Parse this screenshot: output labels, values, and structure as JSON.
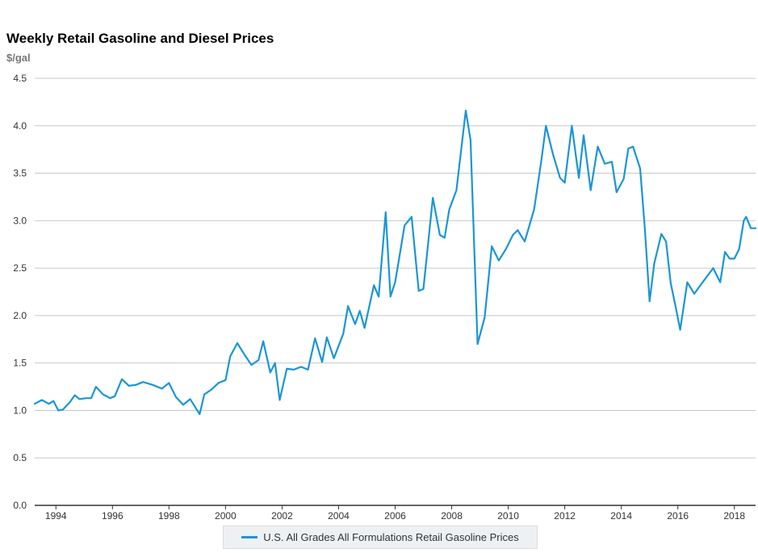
{
  "chart_data": {
    "type": "line",
    "title": "Weekly Retail Gasoline and Diesel Prices",
    "ylabel": "$/gal",
    "xlabel": "",
    "ylim": [
      0,
      4.5
    ],
    "xlim": [
      "1993-04",
      "2018-10"
    ],
    "y_ticks": [
      "0.0",
      "0.5",
      "1.0",
      "1.5",
      "2.0",
      "2.5",
      "3.0",
      "3.5",
      "4.0",
      "4.5"
    ],
    "x_ticks": [
      "1994",
      "1996",
      "1998",
      "2000",
      "2002",
      "2004",
      "2006",
      "2008",
      "2010",
      "2012",
      "2014",
      "2016",
      "2018"
    ],
    "grid": "horizontal",
    "legend_position": "bottom",
    "series": [
      {
        "name": "U.S. All Grades All Formulations Retail Gasoline Prices",
        "color": "#1a96d4",
        "points": [
          [
            "1993-04",
            1.07
          ],
          [
            "1993-07",
            1.11
          ],
          [
            "1993-10",
            1.07
          ],
          [
            "1993-12",
            1.1
          ],
          [
            "1994-02",
            1.0
          ],
          [
            "1994-04",
            1.01
          ],
          [
            "1994-07",
            1.09
          ],
          [
            "1994-09",
            1.16
          ],
          [
            "1994-11",
            1.12
          ],
          [
            "1995-02",
            1.13
          ],
          [
            "1995-04",
            1.13
          ],
          [
            "1995-06",
            1.25
          ],
          [
            "1995-09",
            1.17
          ],
          [
            "1995-12",
            1.13
          ],
          [
            "1996-02",
            1.15
          ],
          [
            "1996-05",
            1.33
          ],
          [
            "1996-08",
            1.26
          ],
          [
            "1996-11",
            1.27
          ],
          [
            "1997-02",
            1.3
          ],
          [
            "1997-06",
            1.27
          ],
          [
            "1997-10",
            1.23
          ],
          [
            "1998-01",
            1.29
          ],
          [
            "1998-04",
            1.14
          ],
          [
            "1998-07",
            1.06
          ],
          [
            "1998-10",
            1.12
          ],
          [
            "1999-01",
            1.0
          ],
          [
            "1999-02",
            0.96
          ],
          [
            "1999-04",
            1.17
          ],
          [
            "1999-07",
            1.22
          ],
          [
            "1999-10",
            1.29
          ],
          [
            "2000-01",
            1.32
          ],
          [
            "2000-03",
            1.57
          ],
          [
            "2000-06",
            1.71
          ],
          [
            "2000-09",
            1.59
          ],
          [
            "2000-12",
            1.48
          ],
          [
            "2001-03",
            1.53
          ],
          [
            "2001-05",
            1.73
          ],
          [
            "2001-08",
            1.4
          ],
          [
            "2001-10",
            1.5
          ],
          [
            "2001-12",
            1.11
          ],
          [
            "2002-03",
            1.44
          ],
          [
            "2002-06",
            1.43
          ],
          [
            "2002-09",
            1.46
          ],
          [
            "2002-12",
            1.43
          ],
          [
            "2003-03",
            1.76
          ],
          [
            "2003-06",
            1.51
          ],
          [
            "2003-08",
            1.77
          ],
          [
            "2003-11",
            1.55
          ],
          [
            "2004-03",
            1.81
          ],
          [
            "2004-05",
            2.1
          ],
          [
            "2004-08",
            1.91
          ],
          [
            "2004-10",
            2.05
          ],
          [
            "2004-12",
            1.87
          ],
          [
            "2005-04",
            2.32
          ],
          [
            "2005-06",
            2.2
          ],
          [
            "2005-09",
            3.09
          ],
          [
            "2005-11",
            2.2
          ],
          [
            "2006-01",
            2.35
          ],
          [
            "2006-05",
            2.95
          ],
          [
            "2006-08",
            3.04
          ],
          [
            "2006-11",
            2.26
          ],
          [
            "2007-01",
            2.28
          ],
          [
            "2007-05",
            3.24
          ],
          [
            "2007-08",
            2.85
          ],
          [
            "2007-10",
            2.82
          ],
          [
            "2007-12",
            3.12
          ],
          [
            "2008-03",
            3.32
          ],
          [
            "2008-07",
            4.16
          ],
          [
            "2008-09",
            3.85
          ],
          [
            "2008-12",
            1.7
          ],
          [
            "2009-03",
            1.98
          ],
          [
            "2009-06",
            2.73
          ],
          [
            "2009-09",
            2.58
          ],
          [
            "2009-12",
            2.7
          ],
          [
            "2010-03",
            2.85
          ],
          [
            "2010-05",
            2.9
          ],
          [
            "2010-08",
            2.78
          ],
          [
            "2010-12",
            3.12
          ],
          [
            "2011-03",
            3.62
          ],
          [
            "2011-05",
            4.0
          ],
          [
            "2011-08",
            3.7
          ],
          [
            "2011-11",
            3.45
          ],
          [
            "2012-01",
            3.4
          ],
          [
            "2012-04",
            4.0
          ],
          [
            "2012-07",
            3.45
          ],
          [
            "2012-09",
            3.9
          ],
          [
            "2012-12",
            3.32
          ],
          [
            "2013-03",
            3.78
          ],
          [
            "2013-06",
            3.6
          ],
          [
            "2013-09",
            3.62
          ],
          [
            "2013-11",
            3.3
          ],
          [
            "2014-02",
            3.44
          ],
          [
            "2014-04",
            3.76
          ],
          [
            "2014-06",
            3.78
          ],
          [
            "2014-09",
            3.55
          ],
          [
            "2014-11",
            2.92
          ],
          [
            "2015-01",
            2.15
          ],
          [
            "2015-03",
            2.55
          ],
          [
            "2015-06",
            2.86
          ],
          [
            "2015-08",
            2.78
          ],
          [
            "2015-10",
            2.34
          ],
          [
            "2015-12",
            2.1
          ],
          [
            "2016-02",
            1.85
          ],
          [
            "2016-05",
            2.35
          ],
          [
            "2016-08",
            2.23
          ],
          [
            "2016-10",
            2.3
          ],
          [
            "2017-01",
            2.4
          ],
          [
            "2017-04",
            2.5
          ],
          [
            "2017-07",
            2.35
          ],
          [
            "2017-09",
            2.67
          ],
          [
            "2017-11",
            2.6
          ],
          [
            "2018-01",
            2.6
          ],
          [
            "2018-03",
            2.7
          ],
          [
            "2018-05",
            3.0
          ],
          [
            "2018-06",
            3.04
          ],
          [
            "2018-08",
            2.92
          ],
          [
            "2018-10",
            2.92
          ]
        ]
      }
    ]
  }
}
